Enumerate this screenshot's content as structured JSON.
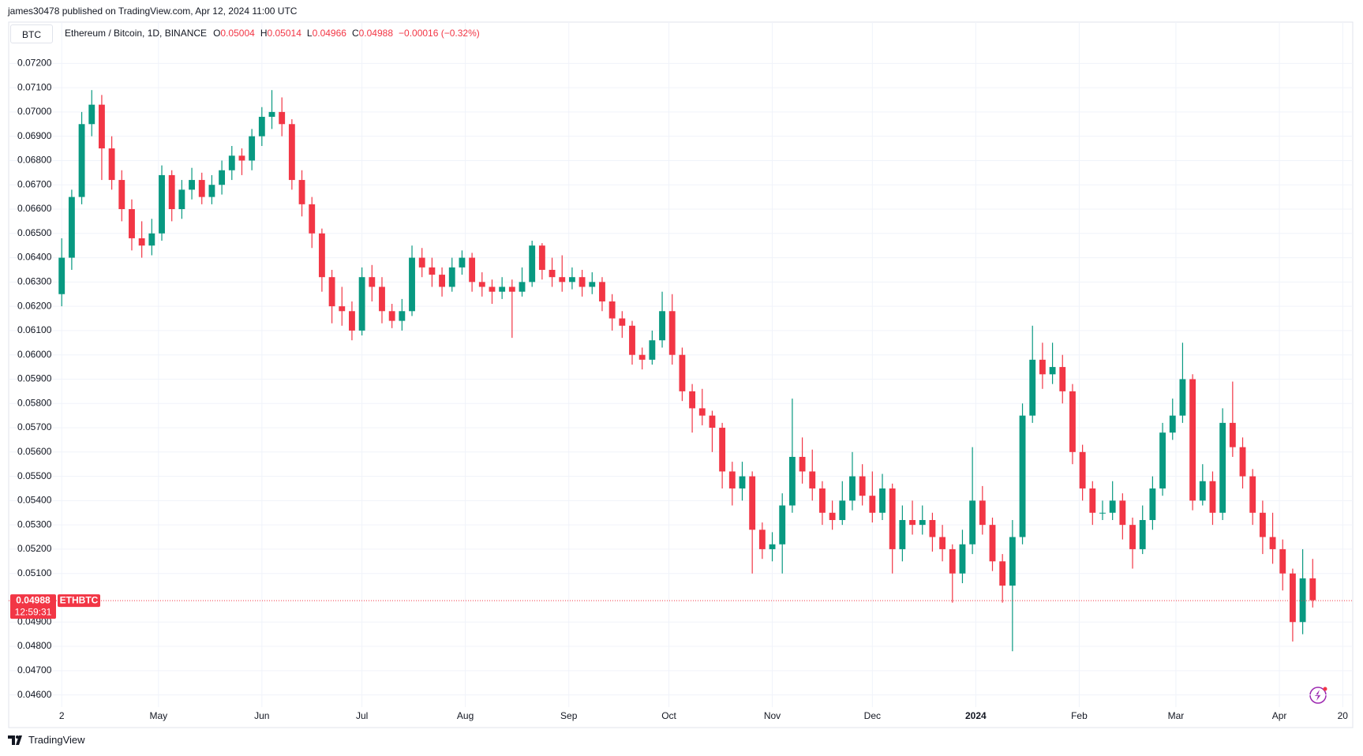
{
  "header": {
    "published": "james30478 published on TradingView.com, Apr 12, 2024 11:00 UTC",
    "currency_button": "BTC",
    "symbol": "Ethereum / Bitcoin, 1D, BINANCE",
    "o_label": "O",
    "o": 0.05004,
    "h_label": "H",
    "h": 0.05014,
    "l_label": "L",
    "l": 0.04966,
    "c_label": "C",
    "c": 0.04988,
    "change": "−0.00016 (−0.32%)"
  },
  "footer": {
    "brand": "TradingView"
  },
  "chart_data": {
    "type": "candlestick",
    "xlim": [
      -5.3,
      129
    ],
    "xticks": [
      {
        "value": 0,
        "label": "2"
      },
      {
        "value": 9.67,
        "label": "May"
      },
      {
        "value": 20,
        "label": "Jun"
      },
      {
        "value": 30,
        "label": "Jul"
      },
      {
        "value": 40.33,
        "label": "Aug"
      },
      {
        "value": 50.67,
        "label": "Sep"
      },
      {
        "value": 60.67,
        "label": "Oct"
      },
      {
        "value": 71,
        "label": "Nov"
      },
      {
        "value": 81,
        "label": "Dec"
      },
      {
        "value": 91.33,
        "label": "2024"
      },
      {
        "value": 101.67,
        "label": "Feb"
      },
      {
        "value": 111.33,
        "label": "Mar"
      },
      {
        "value": 121.67,
        "label": "Apr"
      },
      {
        "value": 128,
        "label": "20"
      }
    ],
    "ylim": [
      0.0455,
      0.0737
    ],
    "yticks": [
      {
        "value": 0.072,
        "label": "0.07200"
      },
      {
        "value": 0.071,
        "label": "0.07100"
      },
      {
        "value": 0.07,
        "label": "0.07000"
      },
      {
        "value": 0.069,
        "label": "0.06900"
      },
      {
        "value": 0.068,
        "label": "0.06800"
      },
      {
        "value": 0.067,
        "label": "0.06700"
      },
      {
        "value": 0.066,
        "label": "0.06600"
      },
      {
        "value": 0.065,
        "label": "0.06500"
      },
      {
        "value": 0.064,
        "label": "0.06400"
      },
      {
        "value": 0.063,
        "label": "0.06300"
      },
      {
        "value": 0.062,
        "label": "0.06200"
      },
      {
        "value": 0.061,
        "label": "0.06100"
      },
      {
        "value": 0.06,
        "label": "0.06000"
      },
      {
        "value": 0.059,
        "label": "0.05900"
      },
      {
        "value": 0.058,
        "label": "0.05800"
      },
      {
        "value": 0.057,
        "label": "0.05700"
      },
      {
        "value": 0.056,
        "label": "0.05600"
      },
      {
        "value": 0.055,
        "label": "0.05500"
      },
      {
        "value": 0.054,
        "label": "0.05400"
      },
      {
        "value": 0.053,
        "label": "0.05300"
      },
      {
        "value": 0.052,
        "label": "0.05200"
      },
      {
        "value": 0.051,
        "label": "0.05100"
      },
      {
        "value": 0.049,
        "label": "0.04900"
      },
      {
        "value": 0.048,
        "label": "0.04800"
      },
      {
        "value": 0.047,
        "label": "0.04700"
      },
      {
        "value": 0.046,
        "label": "0.04600"
      }
    ],
    "grid": true,
    "last_price": 0.04988,
    "countdown": "12:59:31",
    "series": [
      {
        "name": "ETHBTC",
        "up_color": "#089981",
        "down_color": "#f23645",
        "open": [
          0.0625,
          0.064,
          0.0665,
          0.0695,
          0.0703,
          0.0685,
          0.0672,
          0.066,
          0.0648,
          0.0645,
          0.065,
          0.0674,
          0.066,
          0.0668,
          0.0672,
          0.0665,
          0.067,
          0.0676,
          0.0682,
          0.068,
          0.069,
          0.0698,
          0.07,
          0.0695,
          0.0672,
          0.0662,
          0.065,
          0.0632,
          0.062,
          0.0618,
          0.061,
          0.0632,
          0.0628,
          0.0618,
          0.0614,
          0.0618,
          0.064,
          0.0636,
          0.0633,
          0.0628,
          0.0636,
          0.064,
          0.063,
          0.0628,
          0.0626,
          0.0628,
          0.0626,
          0.063,
          0.0645,
          0.0635,
          0.0632,
          0.063,
          0.0632,
          0.0628,
          0.063,
          0.0622,
          0.0615,
          0.0612,
          0.06,
          0.0598,
          0.0606,
          0.0618,
          0.06,
          0.0585,
          0.0578,
          0.0575,
          0.057,
          0.0552,
          0.0545,
          0.055,
          0.0528,
          0.052,
          0.0522,
          0.0538,
          0.0558,
          0.0552,
          0.0545,
          0.0535,
          0.0532,
          0.054,
          0.055,
          0.0542,
          0.0535,
          0.0545,
          0.052,
          0.0532,
          0.053,
          0.0532,
          0.0525,
          0.052,
          0.051,
          0.0522,
          0.054,
          0.053,
          0.0515,
          0.0505,
          0.0525,
          0.0575,
          0.0598,
          0.0592,
          0.0595,
          0.0585,
          0.056,
          0.0545,
          0.0535,
          0.0535,
          0.054,
          0.053,
          0.052,
          0.0532,
          0.0545,
          0.0568,
          0.0575,
          0.059,
          0.054,
          0.0548,
          0.0535,
          0.0572,
          0.0562,
          0.055,
          0.0535,
          0.0525,
          0.052,
          0.051,
          0.049,
          0.0508
        ],
        "high": [
          0.0648,
          0.0668,
          0.07,
          0.0709,
          0.0707,
          0.069,
          0.0676,
          0.0664,
          0.0655,
          0.0656,
          0.0678,
          0.0676,
          0.0672,
          0.0677,
          0.0675,
          0.0674,
          0.068,
          0.0686,
          0.0685,
          0.0693,
          0.0702,
          0.0709,
          0.0706,
          0.0697,
          0.0676,
          0.0665,
          0.0652,
          0.0635,
          0.0628,
          0.0622,
          0.0636,
          0.0637,
          0.0632,
          0.0621,
          0.0623,
          0.0645,
          0.0644,
          0.064,
          0.0636,
          0.064,
          0.0643,
          0.0642,
          0.0634,
          0.0631,
          0.0632,
          0.0631,
          0.0636,
          0.0647,
          0.0646,
          0.064,
          0.0641,
          0.0636,
          0.0635,
          0.0634,
          0.0632,
          0.0625,
          0.0618,
          0.0614,
          0.0603,
          0.061,
          0.0626,
          0.0625,
          0.0603,
          0.0588,
          0.0586,
          0.0577,
          0.0572,
          0.0556,
          0.0556,
          0.0552,
          0.0531,
          0.0527,
          0.0543,
          0.0582,
          0.0566,
          0.0561,
          0.0548,
          0.054,
          0.0548,
          0.056,
          0.0555,
          0.0552,
          0.0551,
          0.0547,
          0.0538,
          0.054,
          0.0538,
          0.0535,
          0.053,
          0.0522,
          0.0528,
          0.0562,
          0.0546,
          0.0533,
          0.0518,
          0.0532,
          0.058,
          0.0612,
          0.0605,
          0.0605,
          0.06,
          0.0588,
          0.0563,
          0.0548,
          0.054,
          0.0548,
          0.0543,
          0.0533,
          0.0538,
          0.055,
          0.0572,
          0.0582,
          0.0605,
          0.0592,
          0.0555,
          0.0552,
          0.0578,
          0.0589,
          0.0566,
          0.0553,
          0.054,
          0.0535,
          0.0524,
          0.0512,
          0.052,
          0.0516
        ],
        "low": [
          0.062,
          0.0635,
          0.0662,
          0.069,
          0.0672,
          0.0668,
          0.0655,
          0.0643,
          0.064,
          0.0641,
          0.0647,
          0.0655,
          0.0656,
          0.0664,
          0.0662,
          0.0662,
          0.0666,
          0.0672,
          0.0674,
          0.0676,
          0.0686,
          0.0693,
          0.069,
          0.0668,
          0.0657,
          0.0644,
          0.0626,
          0.0613,
          0.0612,
          0.0606,
          0.0608,
          0.0622,
          0.0613,
          0.0611,
          0.061,
          0.0616,
          0.0632,
          0.0628,
          0.0624,
          0.0626,
          0.0633,
          0.0626,
          0.0624,
          0.0621,
          0.0623,
          0.0607,
          0.0624,
          0.0628,
          0.0631,
          0.0628,
          0.0626,
          0.0627,
          0.0624,
          0.0625,
          0.0618,
          0.061,
          0.0607,
          0.0596,
          0.0594,
          0.0596,
          0.0603,
          0.0596,
          0.0581,
          0.0568,
          0.0571,
          0.056,
          0.0545,
          0.0538,
          0.054,
          0.051,
          0.0516,
          0.0515,
          0.051,
          0.0535,
          0.0547,
          0.054,
          0.053,
          0.0528,
          0.053,
          0.0536,
          0.0538,
          0.0531,
          0.0532,
          0.051,
          0.0515,
          0.0526,
          0.0526,
          0.0519,
          0.0515,
          0.0498,
          0.0506,
          0.0518,
          0.0526,
          0.0511,
          0.0498,
          0.0478,
          0.0522,
          0.0572,
          0.0586,
          0.0588,
          0.058,
          0.0555,
          0.054,
          0.053,
          0.0532,
          0.0532,
          0.0524,
          0.0512,
          0.0518,
          0.0528,
          0.0542,
          0.0565,
          0.0572,
          0.0536,
          0.0538,
          0.053,
          0.0532,
          0.0558,
          0.0545,
          0.053,
          0.0518,
          0.0514,
          0.0503,
          0.0482,
          0.0485,
          0.0496
        ],
        "close": [
          0.064,
          0.0665,
          0.0695,
          0.0703,
          0.0685,
          0.0672,
          0.066,
          0.0648,
          0.0645,
          0.065,
          0.0674,
          0.066,
          0.0668,
          0.0672,
          0.0665,
          0.067,
          0.0676,
          0.0682,
          0.068,
          0.069,
          0.0698,
          0.07,
          0.0695,
          0.0672,
          0.0662,
          0.065,
          0.0632,
          0.062,
          0.0618,
          0.061,
          0.0632,
          0.0628,
          0.0618,
          0.0614,
          0.0618,
          0.064,
          0.0636,
          0.0633,
          0.0628,
          0.0636,
          0.064,
          0.063,
          0.0628,
          0.0626,
          0.0628,
          0.0626,
          0.063,
          0.0645,
          0.0635,
          0.0632,
          0.063,
          0.0632,
          0.0628,
          0.063,
          0.0622,
          0.0615,
          0.0612,
          0.06,
          0.0598,
          0.0606,
          0.0618,
          0.06,
          0.0585,
          0.0578,
          0.0575,
          0.057,
          0.0552,
          0.0545,
          0.055,
          0.0528,
          0.052,
          0.0522,
          0.0538,
          0.0558,
          0.0552,
          0.0545,
          0.0535,
          0.0532,
          0.054,
          0.055,
          0.0542,
          0.0535,
          0.0545,
          0.052,
          0.0532,
          0.053,
          0.0532,
          0.0525,
          0.052,
          0.051,
          0.0522,
          0.054,
          0.053,
          0.0515,
          0.0505,
          0.0525,
          0.0575,
          0.0598,
          0.0592,
          0.0595,
          0.0585,
          0.056,
          0.0545,
          0.0535,
          0.0535,
          0.054,
          0.053,
          0.052,
          0.0532,
          0.0545,
          0.0568,
          0.0575,
          0.059,
          0.054,
          0.0548,
          0.0535,
          0.0572,
          0.0562,
          0.055,
          0.0535,
          0.0525,
          0.052,
          0.051,
          0.049,
          0.0508,
          0.0499
        ]
      }
    ]
  }
}
